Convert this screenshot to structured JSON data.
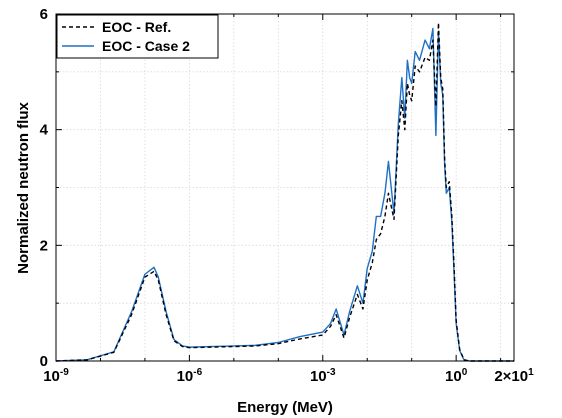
{
  "chart_data": {
    "type": "line",
    "title": "",
    "xlabel": "Energy (MeV)",
    "ylabel": "Normalized neutron flux",
    "xscale": "log",
    "xlim": [
      1e-09,
      20
    ],
    "ylim": [
      0,
      6
    ],
    "grid": true,
    "legend_position": "top-left",
    "x_ticks": [
      {
        "value": 1e-09,
        "base": "10",
        "exp": "-9"
      },
      {
        "value": 1e-06,
        "base": "10",
        "exp": "-6"
      },
      {
        "value": 0.001,
        "base": "10",
        "exp": "-3"
      },
      {
        "value": 1,
        "base": "10",
        "exp": "0"
      },
      {
        "value": 20,
        "base": "2×10",
        "exp": "1"
      }
    ],
    "y_ticks": [
      {
        "value": 0,
        "label": "0"
      },
      {
        "value": 2,
        "label": "2"
      },
      {
        "value": 4,
        "label": "4"
      },
      {
        "value": 6,
        "label": "6"
      }
    ],
    "x": [
      1e-09,
      5e-09,
      2e-08,
      5e-08,
      1e-07,
      1.6e-07,
      2e-07,
      3e-07,
      4.5e-07,
      7e-07,
      1e-06,
      3e-06,
      1e-05,
      3e-05,
      0.0001,
      0.0003,
      0.001,
      0.0015,
      0.002,
      0.003,
      0.004,
      0.006,
      0.008,
      0.01,
      0.013,
      0.016,
      0.02,
      0.025,
      0.03,
      0.04,
      0.05,
      0.06,
      0.07,
      0.08,
      0.09,
      0.1,
      0.12,
      0.15,
      0.2,
      0.25,
      0.3,
      0.35,
      0.4,
      0.45,
      0.5,
      0.55,
      0.6,
      0.7,
      0.8,
      0.9,
      1.0,
      1.2,
      1.5,
      2,
      3,
      5,
      8,
      12,
      20
    ],
    "series": [
      {
        "name": "EOC - Ref.",
        "color": "#000000",
        "dash": "4,3",
        "values": [
          0.0,
          0.02,
          0.15,
          0.8,
          1.45,
          1.55,
          1.4,
          0.8,
          0.35,
          0.25,
          0.23,
          0.24,
          0.25,
          0.26,
          0.3,
          0.38,
          0.45,
          0.6,
          0.8,
          0.4,
          0.75,
          1.15,
          0.9,
          1.4,
          1.7,
          2.1,
          2.2,
          2.5,
          2.9,
          2.45,
          3.9,
          4.5,
          4.0,
          4.8,
          4.6,
          4.5,
          5.1,
          5.0,
          5.25,
          5.2,
          5.55,
          4.4,
          5.85,
          4.9,
          4.7,
          3.5,
          3.0,
          3.1,
          2.5,
          1.6,
          0.7,
          0.2,
          0.02,
          0.0,
          0.0,
          0.0,
          0.0,
          0.0,
          0.0
        ]
      },
      {
        "name": "EOC - Case 2",
        "color": "#1f6fc5",
        "dash": "",
        "values": [
          0.0,
          0.02,
          0.16,
          0.85,
          1.5,
          1.62,
          1.45,
          0.85,
          0.37,
          0.26,
          0.24,
          0.25,
          0.26,
          0.27,
          0.32,
          0.42,
          0.5,
          0.65,
          0.9,
          0.45,
          0.85,
          1.3,
          1.0,
          1.6,
          1.9,
          2.5,
          2.5,
          2.9,
          3.45,
          2.55,
          4.1,
          4.9,
          4.2,
          5.2,
          4.9,
          4.8,
          5.35,
          5.2,
          5.55,
          5.4,
          5.75,
          3.9,
          5.7,
          4.8,
          4.6,
          3.4,
          2.9,
          3.0,
          2.4,
          1.5,
          0.65,
          0.18,
          0.02,
          0.0,
          0.0,
          0.0,
          0.0,
          0.0,
          0.0
        ]
      }
    ]
  }
}
